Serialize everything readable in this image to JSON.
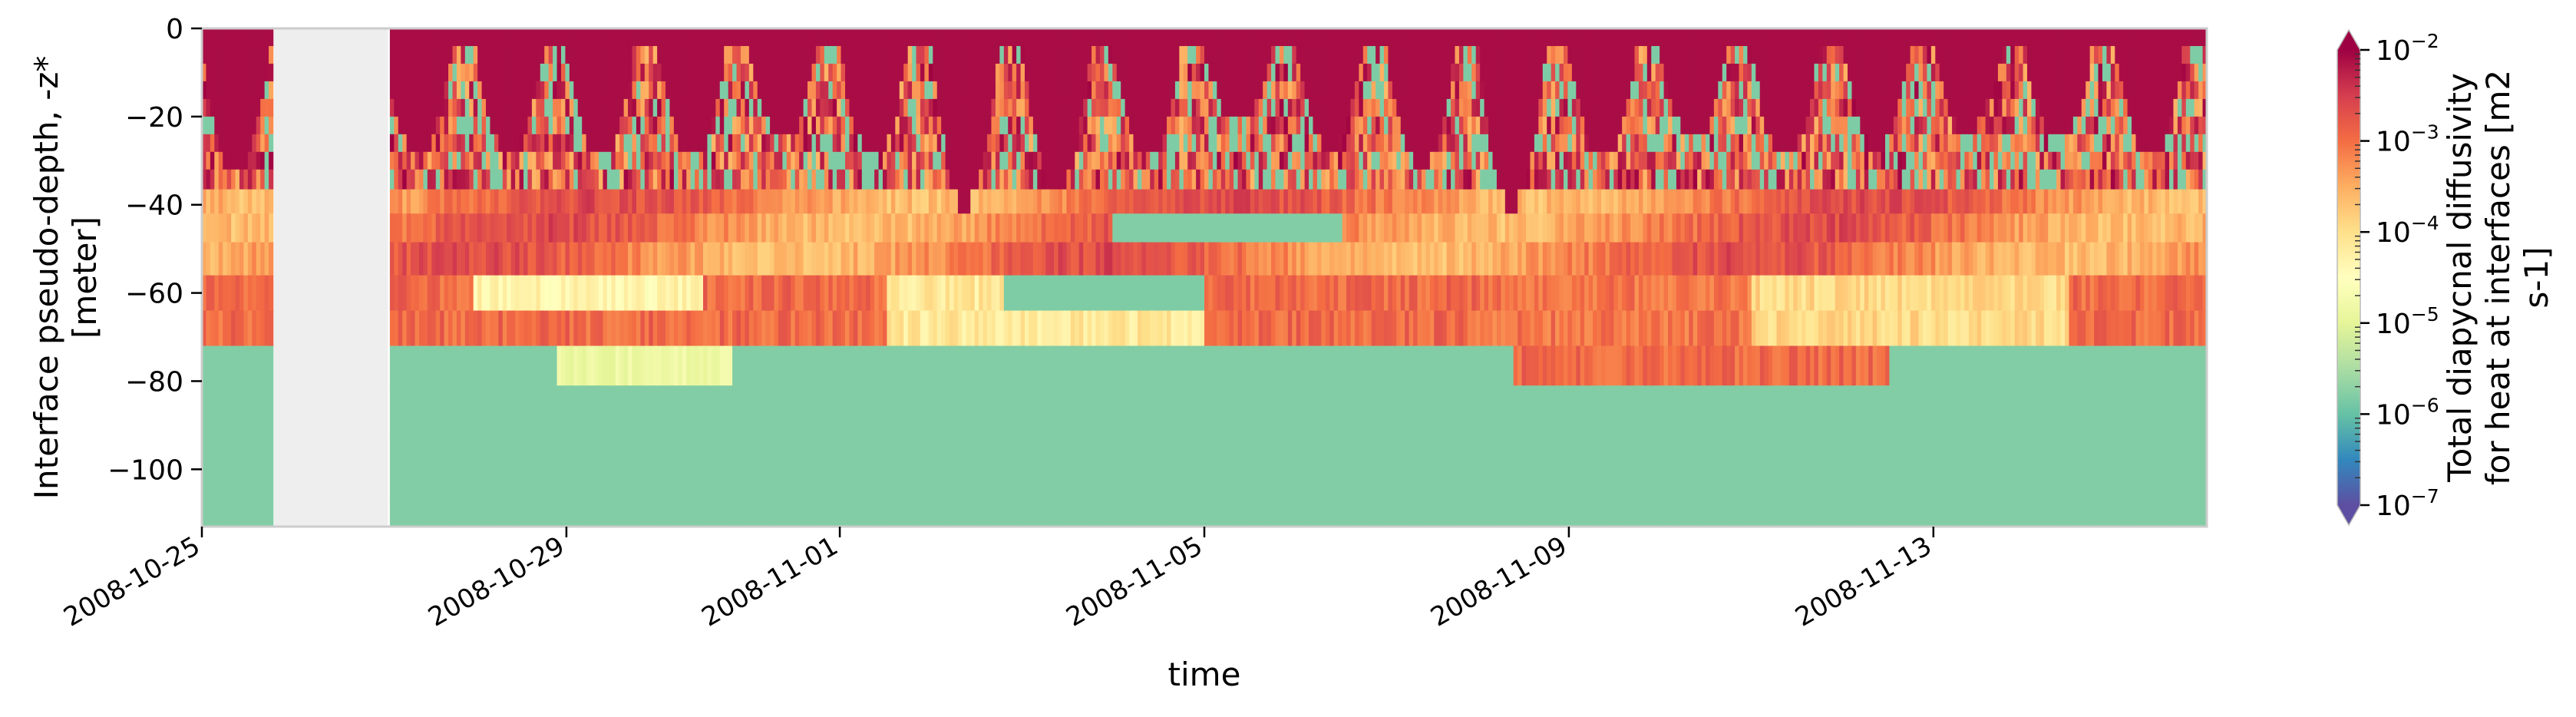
{
  "chart_data": {
    "type": "heatmap",
    "title": "",
    "xlabel": "time",
    "ylabel_lines": [
      "Interface pseudo-depth, -z*",
      "[meter]"
    ],
    "colorbar_label_lines": [
      "Total diapycnal diffusivity",
      "for heat at interfaces [m2",
      "s-1]"
    ],
    "x_range": [
      "2008-10-25",
      "2008-11-16T00:00"
    ],
    "y_range": [
      -113,
      0
    ],
    "x_ticks": [
      "2008-10-25",
      "2008-10-29",
      "2008-11-01",
      "2008-11-05",
      "2008-11-09",
      "2008-11-13"
    ],
    "y_ticks": [
      0,
      -20,
      -40,
      -60,
      -80,
      -100
    ],
    "y_tick_labels": [
      "0",
      "−20",
      "−40",
      "−60",
      "−80",
      "−100"
    ],
    "color_scale": "log",
    "colormap": "Spectral_r",
    "color_range": [
      1e-07,
      0.01
    ],
    "colorbar_ticks": [
      {
        "base": "10",
        "exp": "−2",
        "value": 0.01
      },
      {
        "base": "10",
        "exp": "−3",
        "value": 0.001
      },
      {
        "base": "10",
        "exp": "−4",
        "value": 0.0001
      },
      {
        "base": "10",
        "exp": "−5",
        "value": 1e-05
      },
      {
        "base": "10",
        "exp": "−6",
        "value": 1e-06
      },
      {
        "base": "10",
        "exp": "−7",
        "value": 1e-07
      }
    ],
    "colorbar_extend": "both",
    "missing_interval": [
      "2008-10-25T19:00",
      "2008-10-27T01:00"
    ],
    "missing_color": "#eeeeee",
    "depth_layers": [
      -2,
      -6,
      -10,
      -14,
      -18,
      -22,
      -26,
      -30,
      -34,
      -39,
      -45,
      -52,
      -60,
      -68,
      -76,
      -86,
      -100,
      -113
    ],
    "daily_mixed_layer_peak_depth_m": [
      {
        "date": "2008-10-25",
        "depth": 34
      },
      {
        "date": "2008-10-26",
        "depth": 38
      },
      {
        "date": "2008-10-27",
        "depth": 30
      },
      {
        "date": "2008-10-28",
        "depth": 28
      },
      {
        "date": "2008-10-29",
        "depth": 30
      },
      {
        "date": "2008-10-30",
        "depth": 30
      },
      {
        "date": "2008-10-31",
        "depth": 26
      },
      {
        "date": "2008-11-01",
        "depth": 30
      },
      {
        "date": "2008-11-02",
        "depth": 40
      },
      {
        "date": "2008-11-03",
        "depth": 38
      },
      {
        "date": "2008-11-04",
        "depth": 30
      },
      {
        "date": "2008-11-05",
        "depth": 22
      },
      {
        "date": "2008-11-06",
        "depth": 28
      },
      {
        "date": "2008-11-07",
        "depth": 32
      },
      {
        "date": "2008-11-08",
        "depth": 40
      },
      {
        "date": "2008-11-09",
        "depth": 30
      },
      {
        "date": "2008-11-10",
        "depth": 26
      },
      {
        "date": "2008-11-11",
        "depth": 30
      },
      {
        "date": "2008-11-12",
        "depth": 28
      },
      {
        "date": "2008-11-13",
        "depth": 24
      },
      {
        "date": "2008-11-14",
        "depth": 26
      },
      {
        "date": "2008-11-15",
        "depth": 30
      }
    ]
  }
}
